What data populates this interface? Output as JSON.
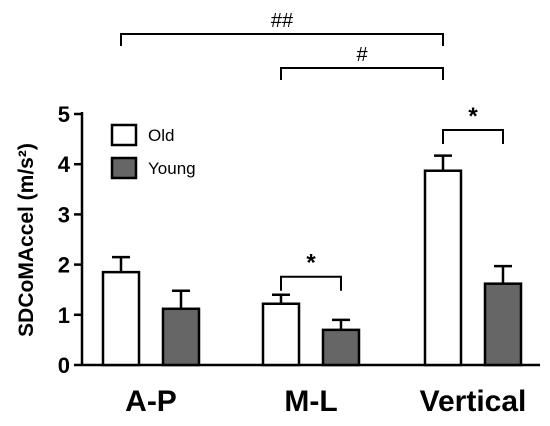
{
  "chart_data": {
    "type": "bar",
    "ylabel": "SDCoMAccel (m/s²)",
    "ylim": [
      0,
      5
    ],
    "yticks": [
      0,
      1,
      2,
      3,
      4,
      5
    ],
    "categories": [
      "A-P",
      "M-L",
      "Vertical"
    ],
    "series": [
      {
        "name": "Old",
        "values": [
          1.85,
          1.22,
          3.87
        ],
        "errors": [
          0.3,
          0.18,
          0.3
        ],
        "color": "#ffffff"
      },
      {
        "name": "Young",
        "values": [
          1.12,
          0.7,
          1.62
        ],
        "errors": [
          0.36,
          0.2,
          0.35
        ],
        "color": "#666666"
      }
    ],
    "legend_position": "top-left",
    "annotations": [
      {
        "label": "*",
        "type": "within",
        "category": 1
      },
      {
        "label": "*",
        "type": "within",
        "category": 2
      },
      {
        "label": "##",
        "type": "between-old",
        "from": 0,
        "to": 2
      },
      {
        "label": "#",
        "type": "between-old",
        "from": 1,
        "to": 2
      }
    ]
  }
}
